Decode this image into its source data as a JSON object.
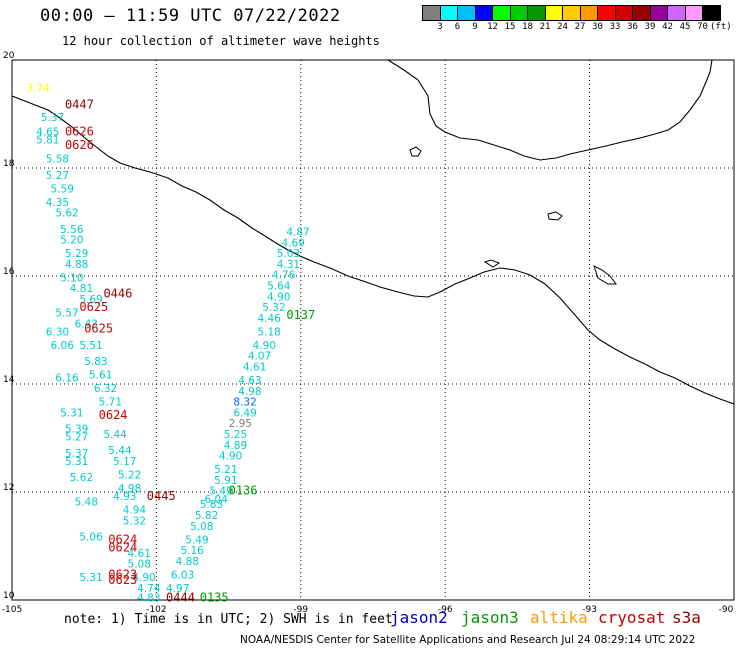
{
  "header": {
    "title": "00:00 – 11:59 UTC 07/22/2022",
    "subtitle": "12 hour collection of altimeter wave heights"
  },
  "colorbar": {
    "colors": [
      "#7f7f7f",
      "#00ffff",
      "#00bfff",
      "#0000ff",
      "#00ff00",
      "#00cc00",
      "#009900",
      "#ffff00",
      "#ffcc00",
      "#ff9900",
      "#ff0000",
      "#cc0000",
      "#990000",
      "#990099",
      "#cc66ff",
      "#ff99ff",
      "#000000"
    ],
    "labels": [
      "3",
      "6",
      "9",
      "12",
      "15",
      "18",
      "21",
      "24",
      "27",
      "30",
      "33",
      "36",
      "39",
      "42",
      "45",
      "70",
      "(ft)"
    ]
  },
  "axes": {
    "lon_labels": [
      "-105",
      "-102",
      "-99",
      "-96",
      "-93",
      "-90"
    ],
    "lat_labels": [
      "20",
      "18",
      "16",
      "14",
      "12",
      "10"
    ]
  },
  "note": "note: 1) Time is in UTC; 2) SWH is in feet",
  "legend": [
    {
      "name": "jason2",
      "color": "#0000cc"
    },
    {
      "name": "jason3",
      "color": "#009900"
    },
    {
      "name": "altika",
      "color": "#ff9900"
    },
    {
      "name": "cryosat",
      "color": "#cc0000"
    },
    {
      "name": "s3a",
      "color": "#990000"
    }
  ],
  "credit": "NOAA/NESDIS Center for Satellite Applications and Research     Jul 24 08:29:14 UTC 2022",
  "time_labels": [
    {
      "text": "0447",
      "color": "#990000",
      "lon": -103.9,
      "lat": 19.1
    },
    {
      "text": "0626",
      "color": "#cc0000",
      "lon": -103.9,
      "lat": 18.6
    },
    {
      "text": "0626",
      "color": "#cc0000",
      "lon": -103.9,
      "lat": 18.35
    },
    {
      "text": "0446",
      "color": "#990000",
      "lon": -103.1,
      "lat": 15.6
    },
    {
      "text": "0625",
      "color": "#cc0000",
      "lon": -103.6,
      "lat": 15.35
    },
    {
      "text": "0625",
      "color": "#cc0000",
      "lon": -103.5,
      "lat": 14.95
    },
    {
      "text": "0137",
      "color": "#009900",
      "lon": -99.3,
      "lat": 15.2
    },
    {
      "text": "0624",
      "color": "#cc0000",
      "lon": -103.2,
      "lat": 13.35
    },
    {
      "text": "0445",
      "color": "#990000",
      "lon": -102.2,
      "lat": 11.85
    },
    {
      "text": "0136",
      "color": "#009900",
      "lon": -100.5,
      "lat": 11.95
    },
    {
      "text": "0624",
      "color": "#cc0000",
      "lon": -103.0,
      "lat": 11.05
    },
    {
      "text": "0624",
      "color": "#cc0000",
      "lon": -103.0,
      "lat": 10.9
    },
    {
      "text": "0623",
      "color": "#cc0000",
      "lon": -103.0,
      "lat": 10.4
    },
    {
      "text": "0623",
      "color": "#cc0000",
      "lon": -103.0,
      "lat": 10.3
    },
    {
      "text": "0444",
      "color": "#990000",
      "lon": -101.8,
      "lat": 9.97
    },
    {
      "text": "0135",
      "color": "#009900",
      "lon": -101.1,
      "lat": 9.97
    }
  ],
  "swh_labels": [
    {
      "text": "3.74",
      "color": "#ffff00",
      "lon": -104.7,
      "lat": 19.42
    },
    {
      "text": "5.37",
      "color": "#00cccc",
      "lon": -104.4,
      "lat": 18.87
    },
    {
      "text": "4.65",
      "color": "#00cccc",
      "lon": -104.5,
      "lat": 18.6
    },
    {
      "text": "5.81",
      "color": "#00cccc",
      "lon": -104.5,
      "lat": 18.45
    },
    {
      "text": "5.58",
      "color": "#00cccc",
      "lon": -104.3,
      "lat": 18.1
    },
    {
      "text": "5.27",
      "color": "#00cccc",
      "lon": -104.3,
      "lat": 17.8
    },
    {
      "text": "5.59",
      "color": "#00cccc",
      "lon": -104.2,
      "lat": 17.55
    },
    {
      "text": "4.35",
      "color": "#00cccc",
      "lon": -104.3,
      "lat": 17.3
    },
    {
      "text": "5.62",
      "color": "#00cccc",
      "lon": -104.1,
      "lat": 17.1
    },
    {
      "text": "5.56",
      "color": "#00cccc",
      "lon": -104.0,
      "lat": 16.8
    },
    {
      "text": "5.20",
      "color": "#00cccc",
      "lon": -104.0,
      "lat": 16.6
    },
    {
      "text": "5.29",
      "color": "#00cccc",
      "lon": -103.9,
      "lat": 16.35
    },
    {
      "text": "4.88",
      "color": "#00cccc",
      "lon": -103.9,
      "lat": 16.15
    },
    {
      "text": "5.10",
      "color": "#00cccc",
      "lon": -104.0,
      "lat": 15.9
    },
    {
      "text": "4.81",
      "color": "#00cccc",
      "lon": -103.8,
      "lat": 15.7
    },
    {
      "text": "5.69",
      "color": "#00cccc",
      "lon": -103.6,
      "lat": 15.5
    },
    {
      "text": "5.57",
      "color": "#00cccc",
      "lon": -104.1,
      "lat": 15.25
    },
    {
      "text": "6.43",
      "color": "#00cccc",
      "lon": -103.7,
      "lat": 15.05
    },
    {
      "text": "6.30",
      "color": "#00cccc",
      "lon": -104.3,
      "lat": 14.9
    },
    {
      "text": "5.51",
      "color": "#00cccc",
      "lon": -103.6,
      "lat": 14.65
    },
    {
      "text": "6.06",
      "color": "#00cccc",
      "lon": -104.2,
      "lat": 14.65
    },
    {
      "text": "5.83",
      "color": "#00cccc",
      "lon": -103.5,
      "lat": 14.35
    },
    {
      "text": "5.61",
      "color": "#00cccc",
      "lon": -103.4,
      "lat": 14.1
    },
    {
      "text": "6.16",
      "color": "#00cccc",
      "lon": -104.1,
      "lat": 14.05
    },
    {
      "text": "6.32",
      "color": "#00cccc",
      "lon": -103.3,
      "lat": 13.85
    },
    {
      "text": "5.71",
      "color": "#00cccc",
      "lon": -103.2,
      "lat": 13.6
    },
    {
      "text": "5.31",
      "color": "#00cccc",
      "lon": -104.0,
      "lat": 13.4
    },
    {
      "text": "5.39",
      "color": "#00cccc",
      "lon": -103.9,
      "lat": 13.1
    },
    {
      "text": "5.44",
      "color": "#00cccc",
      "lon": -103.1,
      "lat": 13.0
    },
    {
      "text": "5.27",
      "color": "#00cccc",
      "lon": -103.9,
      "lat": 12.95
    },
    {
      "text": "5.44",
      "color": "#00cccc",
      "lon": -103.0,
      "lat": 12.7
    },
    {
      "text": "5.37",
      "color": "#00cccc",
      "lon": -103.9,
      "lat": 12.65
    },
    {
      "text": "5.17",
      "color": "#00cccc",
      "lon": -102.9,
      "lat": 12.5
    },
    {
      "text": "5.31",
      "color": "#00cccc",
      "lon": -103.9,
      "lat": 12.5
    },
    {
      "text": "5.22",
      "color": "#00cccc",
      "lon": -102.8,
      "lat": 12.25
    },
    {
      "text": "5.62",
      "color": "#00cccc",
      "lon": -103.8,
      "lat": 12.2
    },
    {
      "text": "4.98",
      "color": "#00cccc",
      "lon": -102.8,
      "lat": 12.0
    },
    {
      "text": "4.93",
      "color": "#00cccc",
      "lon": -102.9,
      "lat": 11.85
    },
    {
      "text": "5.48",
      "color": "#00cccc",
      "lon": -103.7,
      "lat": 11.75
    },
    {
      "text": "4.94",
      "color": "#00cccc",
      "lon": -102.7,
      "lat": 11.6
    },
    {
      "text": "5.32",
      "color": "#00cccc",
      "lon": -102.7,
      "lat": 11.4
    },
    {
      "text": "5.06",
      "color": "#00cccc",
      "lon": -103.6,
      "lat": 11.1
    },
    {
      "text": "4.61",
      "color": "#00cccc",
      "lon": -102.6,
      "lat": 10.8
    },
    {
      "text": "5.08",
      "color": "#00cccc",
      "lon": -102.6,
      "lat": 10.6
    },
    {
      "text": "4.90",
      "color": "#00cccc",
      "lon": -102.5,
      "lat": 10.35
    },
    {
      "text": "5.31",
      "color": "#00cccc",
      "lon": -103.6,
      "lat": 10.35
    },
    {
      "text": "4.74",
      "color": "#00cccc",
      "lon": -102.4,
      "lat": 10.15
    },
    {
      "text": "4.83",
      "color": "#00cccc",
      "lon": -102.4,
      "lat": 9.97
    },
    {
      "text": "4.97",
      "color": "#00cccc",
      "lon": -101.8,
      "lat": 10.15
    },
    {
      "text": "6.03",
      "color": "#00cccc",
      "lon": -101.7,
      "lat": 10.4
    },
    {
      "text": "4.88",
      "color": "#00cccc",
      "lon": -101.6,
      "lat": 10.65
    },
    {
      "text": "5.16",
      "color": "#00cccc",
      "lon": -101.5,
      "lat": 10.85
    },
    {
      "text": "5.49",
      "color": "#00cccc",
      "lon": -101.4,
      "lat": 11.05
    },
    {
      "text": "5.08",
      "color": "#00cccc",
      "lon": -101.3,
      "lat": 11.3
    },
    {
      "text": "5.82",
      "color": "#00cccc",
      "lon": -101.2,
      "lat": 11.5
    },
    {
      "text": "5.83",
      "color": "#00cccc",
      "lon": -101.1,
      "lat": 11.7
    },
    {
      "text": "6.04",
      "color": "#00cccc",
      "lon": -101.0,
      "lat": 11.8
    },
    {
      "text": "5.49",
      "color": "#00cccc",
      "lon": -100.9,
      "lat": 11.95
    },
    {
      "text": "5.91",
      "color": "#00cccc",
      "lon": -100.8,
      "lat": 12.15
    },
    {
      "text": "5.21",
      "color": "#00cccc",
      "lon": -100.8,
      "lat": 12.35
    },
    {
      "text": "4.90",
      "color": "#00cccc",
      "lon": -100.7,
      "lat": 12.6
    },
    {
      "text": "4.89",
      "color": "#00cccc",
      "lon": -100.6,
      "lat": 12.8
    },
    {
      "text": "5.25",
      "color": "#00cccc",
      "lon": -100.6,
      "lat": 13.0
    },
    {
      "text": "2.95",
      "color": "#7f7f7f",
      "lon": -100.5,
      "lat": 13.2
    },
    {
      "text": "6.49",
      "color": "#00cccc",
      "lon": -100.4,
      "lat": 13.4
    },
    {
      "text": "8.32",
      "color": "#0066ff",
      "lon": -100.4,
      "lat": 13.6
    },
    {
      "text": "4.98",
      "color": "#00cccc",
      "lon": -100.3,
      "lat": 13.8
    },
    {
      "text": "4.63",
      "color": "#00cccc",
      "lon": -100.3,
      "lat": 14.0
    },
    {
      "text": "4.61",
      "color": "#00cccc",
      "lon": -100.2,
      "lat": 14.25
    },
    {
      "text": "4.07",
      "color": "#00cccc",
      "lon": -100.1,
      "lat": 14.45
    },
    {
      "text": "4.90",
      "color": "#00cccc",
      "lon": -100.0,
      "lat": 14.65
    },
    {
      "text": "5.18",
      "color": "#00cccc",
      "lon": -99.9,
      "lat": 14.9
    },
    {
      "text": "4.46",
      "color": "#00cccc",
      "lon": -99.9,
      "lat": 15.15
    },
    {
      "text": "5.32",
      "color": "#00cccc",
      "lon": -99.8,
      "lat": 15.35
    },
    {
      "text": "4.90",
      "color": "#00cccc",
      "lon": -99.7,
      "lat": 15.55
    },
    {
      "text": "5.64",
      "color": "#00cccc",
      "lon": -99.7,
      "lat": 15.75
    },
    {
      "text": "4.76",
      "color": "#00cccc",
      "lon": -99.6,
      "lat": 15.95
    },
    {
      "text": "4.31",
      "color": "#00cccc",
      "lon": -99.5,
      "lat": 16.15
    },
    {
      "text": "5.03",
      "color": "#00cccc",
      "lon": -99.5,
      "lat": 16.35
    },
    {
      "text": "4.69",
      "color": "#00cccc",
      "lon": -99.4,
      "lat": 16.55
    },
    {
      "text": "4.87",
      "color": "#00cccc",
      "lon": -99.3,
      "lat": 16.75
    }
  ]
}
